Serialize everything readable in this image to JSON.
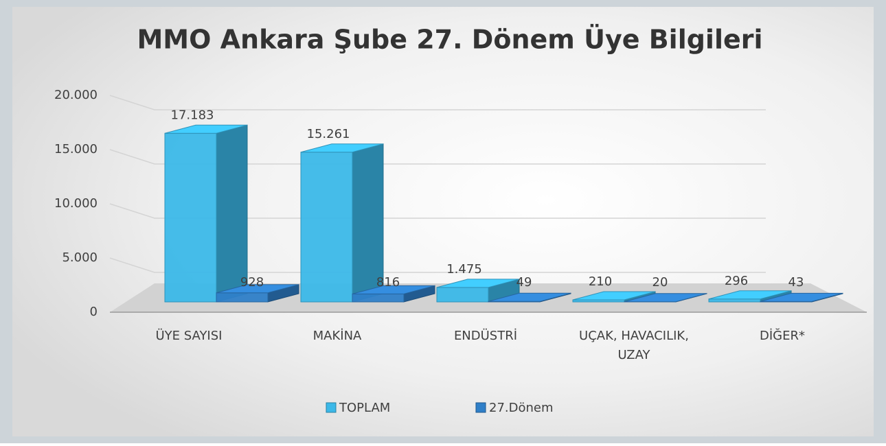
{
  "chart_data": {
    "type": "bar3d",
    "title": "MMO Ankara Şube 27. Dönem Üye Bilgileri",
    "categories": [
      "ÜYE SAYISI",
      "MAKİNA",
      "ENDÜSTRİ",
      "UÇAK, HAVACILIK, UZAY",
      "DİĞER*"
    ],
    "series": [
      {
        "name": "TOPLAM",
        "color": "#3bb8e8",
        "values": [
          17183,
          15261,
          1475,
          210,
          296
        ],
        "value_labels": [
          "17.183",
          "15.261",
          "1.475",
          "210",
          "296"
        ]
      },
      {
        "name": "27.Dönem",
        "color": "#2f7fc8",
        "values": [
          928,
          816,
          49,
          20,
          43
        ]
      }
    ],
    "ylim": [
      0,
      20000
    ],
    "yticks": [
      0,
      {
        "value": 5000,
        "label": "5.000"
      },
      {
        "value": 10000,
        "label": "10.000"
      },
      {
        "value": 15000,
        "label": "15.000"
      },
      {
        "value": 20000,
        "label": "20.000"
      }
    ],
    "grid": true,
    "legend": "bottom"
  }
}
